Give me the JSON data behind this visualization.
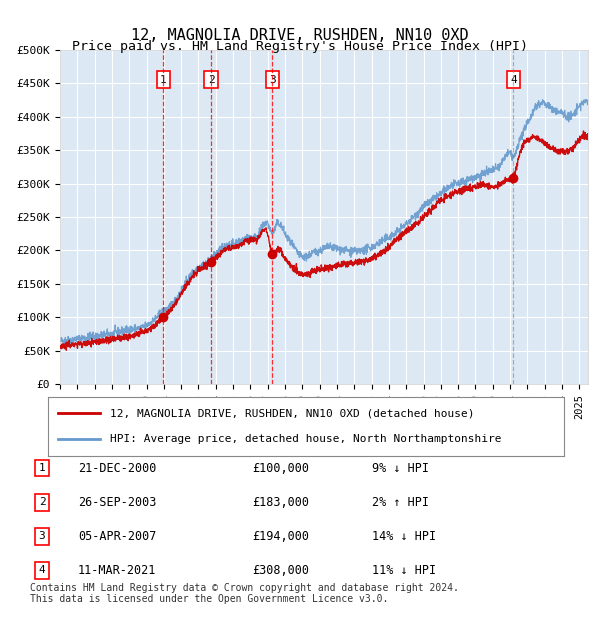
{
  "title": "12, MAGNOLIA DRIVE, RUSHDEN, NN10 0XD",
  "subtitle": "Price paid vs. HM Land Registry's House Price Index (HPI)",
  "ylabel_ticks": [
    "£0",
    "£50K",
    "£100K",
    "£150K",
    "£200K",
    "£250K",
    "£300K",
    "£350K",
    "£400K",
    "£450K",
    "£500K"
  ],
  "ytick_values": [
    0,
    50000,
    100000,
    150000,
    200000,
    250000,
    300000,
    350000,
    400000,
    450000,
    500000
  ],
  "xlim_start": 1995.0,
  "xlim_end": 2025.5,
  "ylim": [
    0,
    500000
  ],
  "background_color": "#dce9f5",
  "grid_color": "#ffffff",
  "sale_color": "#cc0000",
  "hpi_color": "#6699cc",
  "sale_label": "12, MAGNOLIA DRIVE, RUSHDEN, NN10 0XD (detached house)",
  "hpi_label": "HPI: Average price, detached house, North Northamptonshire",
  "transactions": [
    {
      "num": 1,
      "date": "21-DEC-2000",
      "price": 100000,
      "pct": "9%",
      "dir": "↓",
      "year": 2000.97
    },
    {
      "num": 2,
      "date": "26-SEP-2003",
      "price": 183000,
      "pct": "2%",
      "dir": "↑",
      "year": 2003.73
    },
    {
      "num": 3,
      "date": "05-APR-2007",
      "price": 194000,
      "pct": "14%",
      "dir": "↓",
      "year": 2007.26
    },
    {
      "num": 4,
      "date": "11-MAR-2021",
      "price": 308000,
      "pct": "11%",
      "dir": "↓",
      "year": 2021.19
    }
  ],
  "footer": "Contains HM Land Registry data © Crown copyright and database right 2024.\nThis data is licensed under the Open Government Licence v3.0.",
  "title_fontsize": 11,
  "subtitle_fontsize": 9.5,
  "tick_fontsize": 8,
  "legend_fontsize": 8,
  "footer_fontsize": 7
}
